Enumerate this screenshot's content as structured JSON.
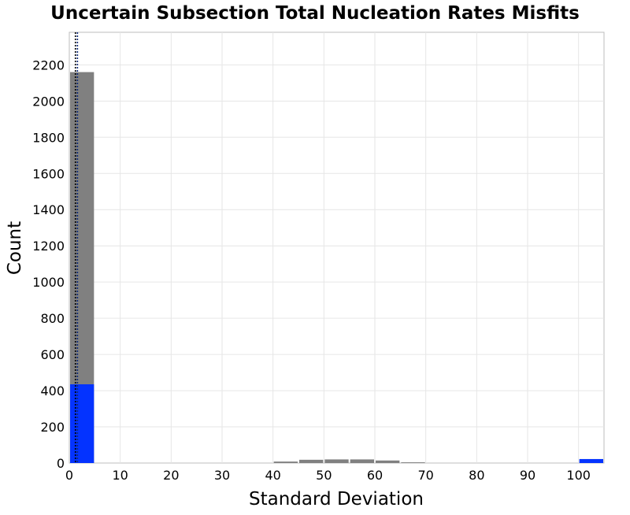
{
  "chart_data": {
    "type": "bar",
    "title": "Uncertain Subsection Total Nucleation Rates Misfits",
    "xlabel": "Standard Deviation",
    "ylabel": "Count",
    "xlim": [
      0,
      105
    ],
    "ylim": [
      0,
      2380
    ],
    "x_ticks": [
      0,
      10,
      20,
      30,
      40,
      50,
      60,
      70,
      80,
      90,
      100
    ],
    "y_ticks": [
      0,
      200,
      400,
      600,
      800,
      1000,
      1200,
      1400,
      1600,
      1800,
      2000,
      2200
    ],
    "grid": true,
    "series": [
      {
        "color": "#808080",
        "bins": [
          {
            "x0": 0,
            "x1": 5,
            "value": 2160
          },
          {
            "x0": 40,
            "x1": 45,
            "value": 8
          },
          {
            "x0": 45,
            "x1": 50,
            "value": 18
          },
          {
            "x0": 50,
            "x1": 55,
            "value": 20
          },
          {
            "x0": 55,
            "x1": 60,
            "value": 20
          },
          {
            "x0": 60,
            "x1": 65,
            "value": 14
          },
          {
            "x0": 65,
            "x1": 70,
            "value": 4
          }
        ]
      },
      {
        "color": "#0433ff",
        "bins": [
          {
            "x0": 0,
            "x1": 5,
            "value": 435
          },
          {
            "x0": 100,
            "x1": 105,
            "value": 22
          }
        ]
      }
    ],
    "reference_lines": [
      {
        "x": 1.2,
        "color": "#000000",
        "style": "dotted"
      },
      {
        "x": 1.6,
        "color": "#0d2a7a",
        "style": "dotted"
      }
    ]
  }
}
